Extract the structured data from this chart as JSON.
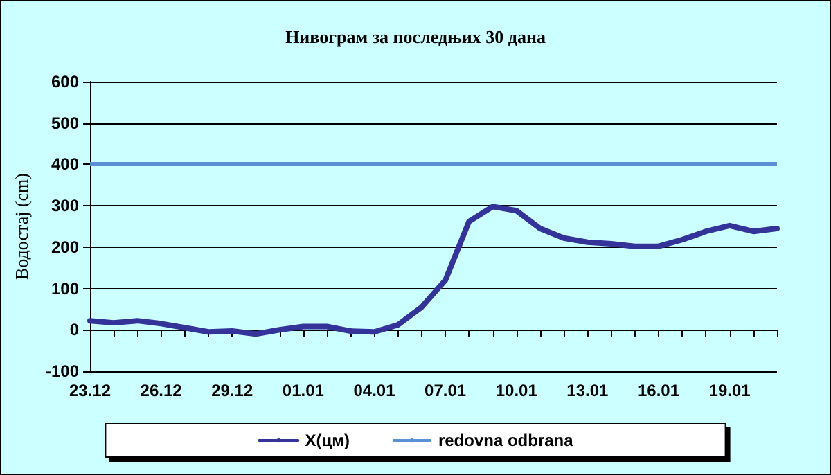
{
  "chart_data": {
    "type": "line",
    "title": "Нивограм за последњих 30 дана",
    "ylabel": "Водостај (cm)",
    "categories": [
      "23.12",
      null,
      null,
      "26.12",
      null,
      null,
      "29.12",
      null,
      null,
      "01.01",
      null,
      null,
      "04.01",
      null,
      null,
      "07.01",
      null,
      null,
      "10.01",
      null,
      null,
      "13.01",
      null,
      null,
      "16.01",
      null,
      null,
      "19.01",
      null,
      null
    ],
    "series": [
      {
        "name": "X(цм)",
        "color": "#333399",
        "values": [
          22,
          17,
          22,
          15,
          5,
          -5,
          -3,
          -10,
          0,
          8,
          8,
          -3,
          -5,
          12,
          55,
          120,
          262,
          298,
          288,
          245,
          222,
          212,
          208,
          202,
          202,
          218,
          238,
          252,
          238,
          245
        ]
      }
    ],
    "ref_lines": [
      {
        "axis": "y",
        "value": 400,
        "label": "redovna odbrana",
        "color": "#5b8fd6"
      }
    ],
    "ylim": [
      -100,
      600
    ],
    "yticks": [
      -100,
      0,
      100,
      200,
      300,
      400,
      500,
      600
    ],
    "grid": "y",
    "legend": "bottom",
    "marker": "none",
    "line_style": "solid"
  }
}
